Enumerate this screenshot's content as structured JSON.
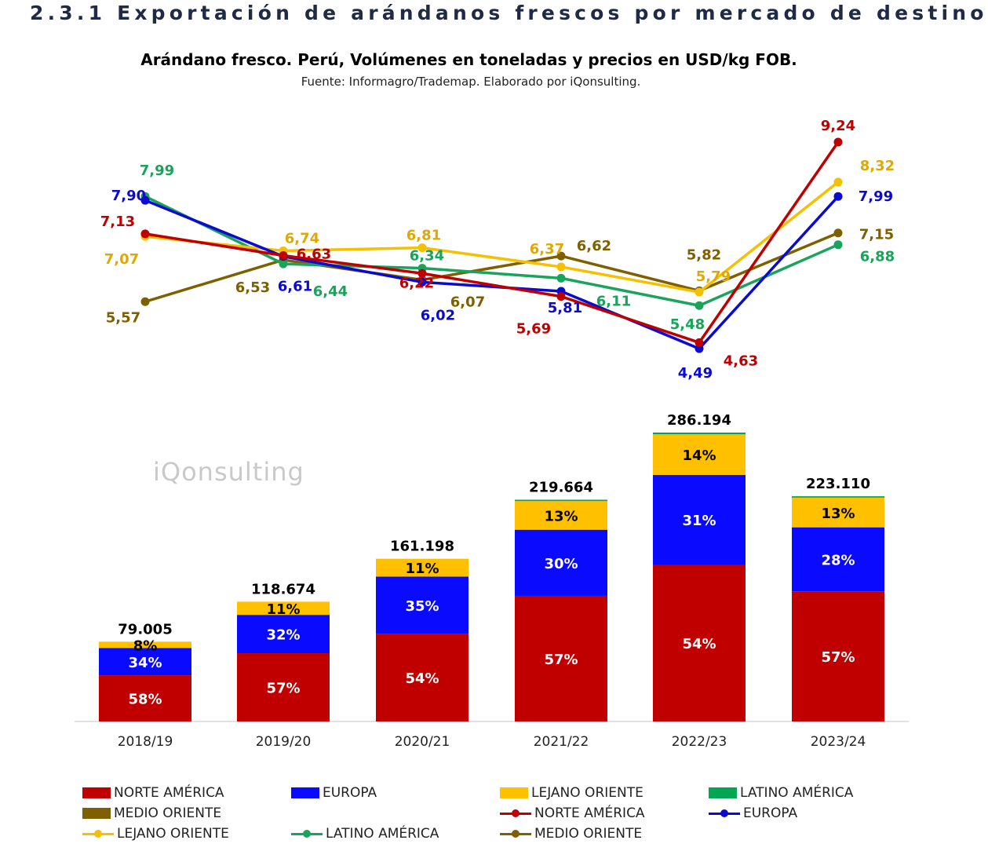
{
  "page": {
    "heading": "2.3.1 Exportación de arándanos frescos por mercado de destino",
    "watermark": "iQonsulting"
  },
  "chart_data": {
    "type": "bar+line",
    "title": "Arándano fresco. Perú, Volúmenes en toneladas y precios en USD/kg FOB.",
    "subtitle": "Fuente: Informagro/Trademap. Elaborado por iQonsulting.",
    "categories": [
      "2018/19",
      "2019/20",
      "2020/21",
      "2021/22",
      "2022/23",
      "2023/24"
    ],
    "bar_totals": [
      79005,
      118674,
      161198,
      219664,
      286194,
      223110
    ],
    "bar_total_labels": [
      "79.005",
      "118.674",
      "161.198",
      "219.664",
      "286.194",
      "223.110"
    ],
    "bar_series": [
      {
        "name": "NORTE AMÉRICA",
        "color": "#c00000",
        "share": [
          58,
          57,
          54,
          57,
          54,
          57
        ],
        "labels": [
          "58%",
          "57%",
          "54%",
          "57%",
          "54%",
          "57%"
        ]
      },
      {
        "name": "EUROPA",
        "color": "#0a0aff",
        "share": [
          34,
          32,
          35,
          30,
          31,
          28
        ],
        "labels": [
          "34%",
          "32%",
          "35%",
          "30%",
          "31%",
          "28%"
        ]
      },
      {
        "name": "LEJANO ORIENTE",
        "color": "#ffc000",
        "share": [
          8,
          11,
          11,
          13,
          14,
          13
        ],
        "labels": [
          "8%",
          "11%",
          "11%",
          "13%",
          "14%",
          "13%"
        ]
      },
      {
        "name": "LATINO AMÉRICA",
        "color": "#00a651",
        "share": [
          0,
          0,
          0,
          0.6,
          0.6,
          0.6
        ],
        "labels": [
          "",
          "",
          "",
          "",
          "",
          ""
        ]
      },
      {
        "name": "MEDIO ORIENTE",
        "color": "#7f6000",
        "share": [
          0,
          0,
          0,
          0,
          0,
          0
        ],
        "labels": [
          "",
          "",
          "",
          "",
          "",
          ""
        ]
      }
    ],
    "line_series": [
      {
        "name": "NORTE AMÉRICA",
        "color": "#c00000",
        "values": [
          7.13,
          6.63,
          6.22,
          5.69,
          4.63,
          9.24
        ],
        "labels": [
          "7,13",
          "6,63",
          "6,22",
          "5,69",
          "4,63",
          "9,24"
        ]
      },
      {
        "name": "EUROPA",
        "color": "#0a0ad0",
        "values": [
          7.9,
          6.61,
          6.02,
          5.81,
          4.49,
          7.99
        ],
        "labels": [
          "7,90",
          "6,61",
          "6,02",
          "5,81",
          "4,49",
          "7,99"
        ]
      },
      {
        "name": "LEJANO ORIENTE",
        "color": "#f5c000",
        "values": [
          7.07,
          6.74,
          6.81,
          6.37,
          5.79,
          8.32
        ],
        "labels": [
          "7,07",
          "6,74",
          "6,81",
          "6,37",
          "5,79",
          "8,32"
        ]
      },
      {
        "name": "LATINO AMÉRICA",
        "color": "#1aa35a",
        "values": [
          7.99,
          6.44,
          6.34,
          6.11,
          5.48,
          6.88
        ],
        "labels": [
          "7,99",
          "6,44",
          "6,34",
          "6,11",
          "5,48",
          "6,88"
        ]
      },
      {
        "name": "MEDIO ORIENTE",
        "color": "#7f6000",
        "values": [
          5.57,
          6.53,
          6.07,
          6.62,
          5.82,
          7.15
        ],
        "labels": [
          "5,57",
          "6,53",
          "6,07",
          "6,62",
          "5,82",
          "7,15"
        ]
      }
    ],
    "label_colors": {
      "LEJANO ORIENTE": "#e0a800",
      "LATINO AMÉRICA": "#1aa35a"
    },
    "grid": false,
    "legend_position": "bottom"
  }
}
